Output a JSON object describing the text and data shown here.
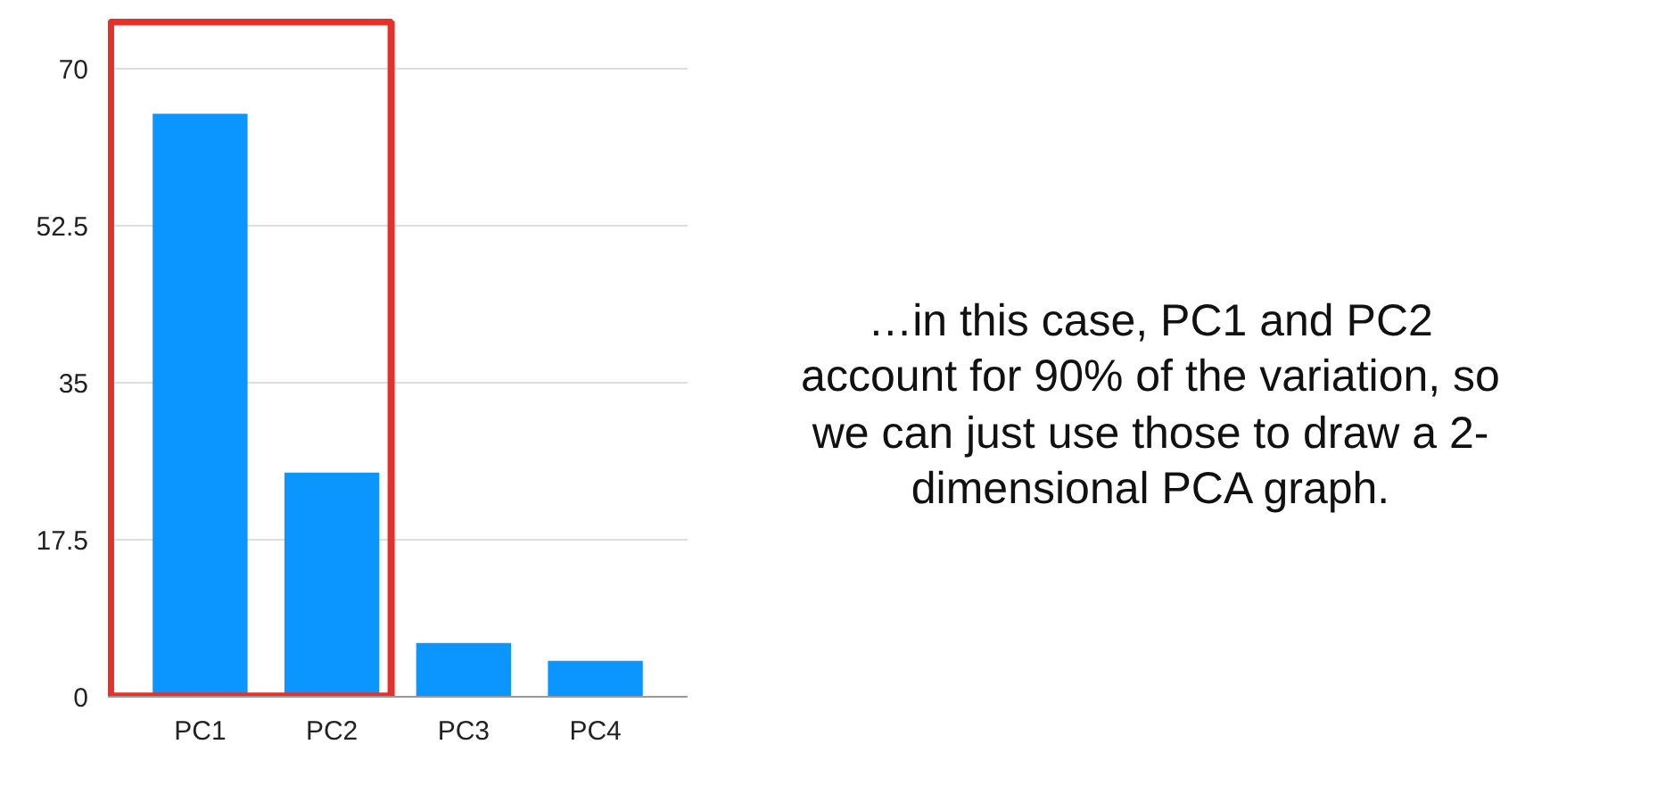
{
  "chart_data": {
    "type": "bar",
    "categories": [
      "PC1",
      "PC2",
      "PC3",
      "PC4"
    ],
    "values": [
      65,
      25,
      6,
      4
    ],
    "color": "#0a95ff",
    "ylim": [
      0,
      70
    ],
    "yticks": [
      0,
      17.5,
      35,
      52.5,
      70
    ],
    "grid": "y",
    "annotations": [
      "…in this case, PC1 and PC2 account for 90% of the variation, so we can just use those to draw a 2-dimensional PCA graph."
    ]
  }
}
